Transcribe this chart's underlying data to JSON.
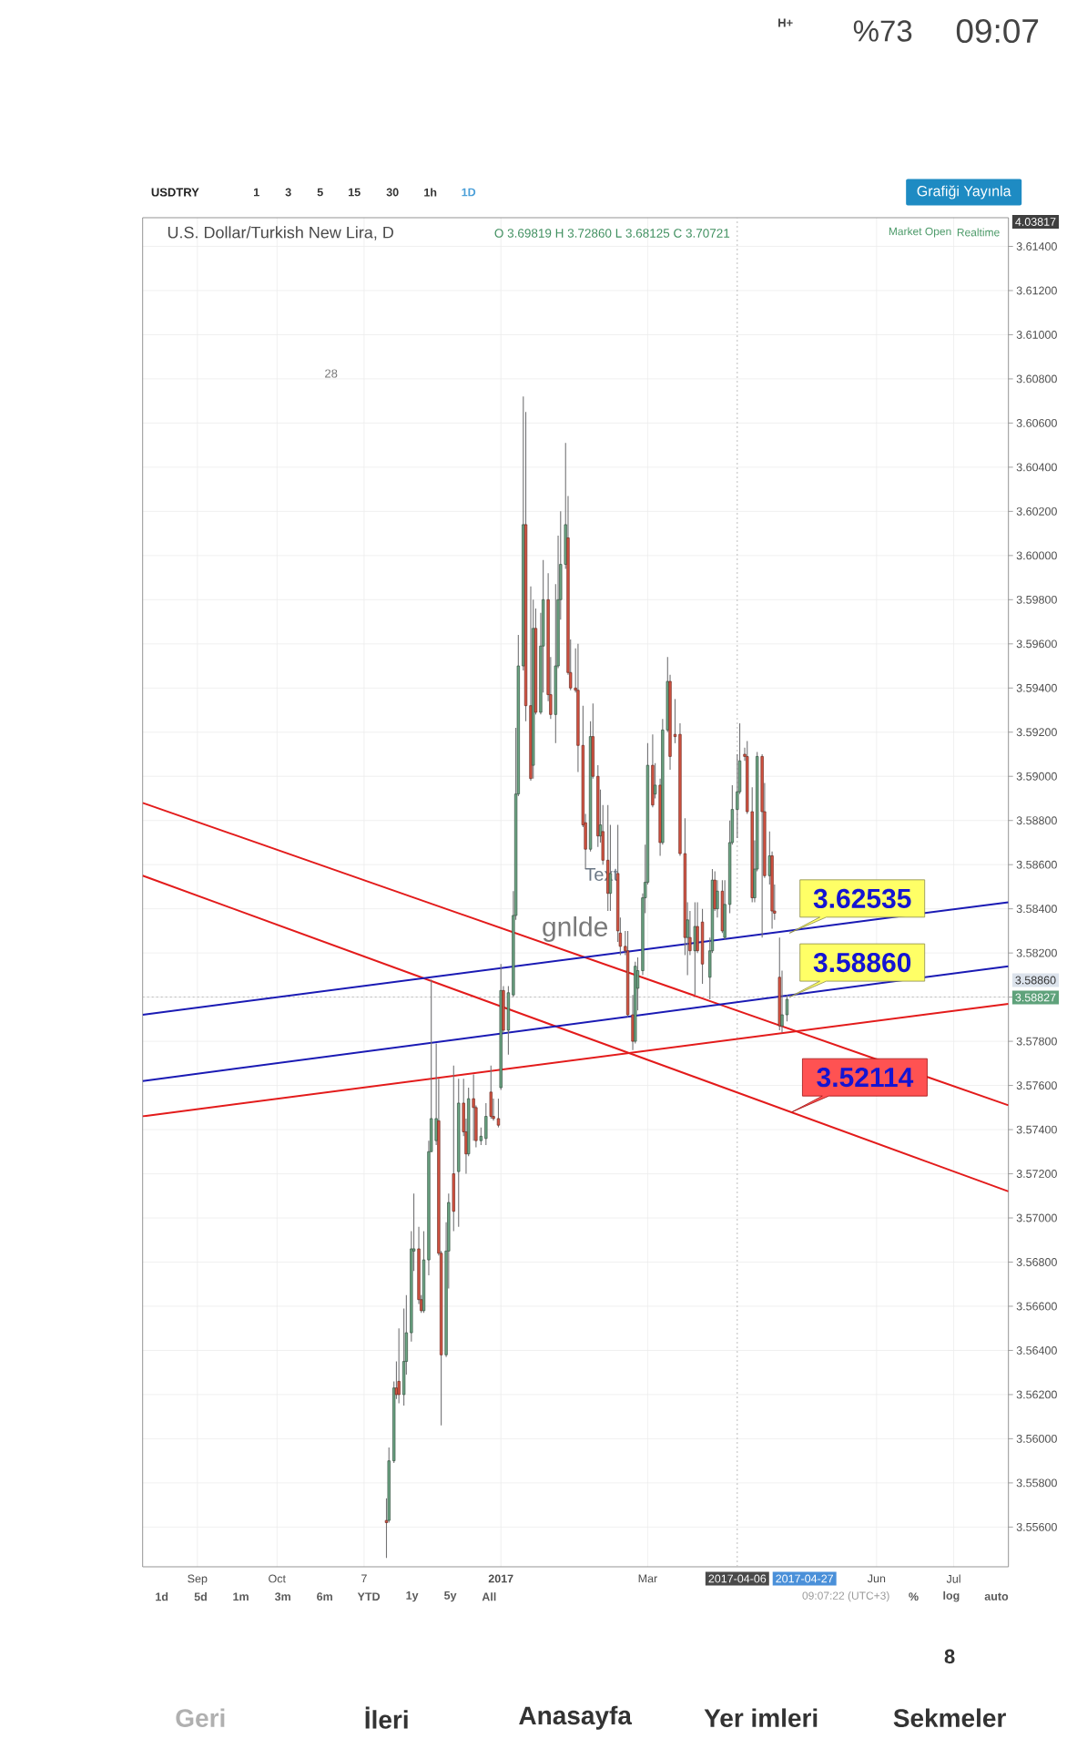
{
  "chart_data": {
    "type": "candlestick",
    "title": "U.S. Dollar/Turkish New Lira, D",
    "subtitle": "O 3.69819 H 3.72860 L 3.68125 C 3.70721",
    "x": [
      "2016-11-16",
      "2016-11-17",
      "2016-11-19",
      "2016-11-20",
      "2016-11-21",
      "2016-11-23",
      "2016-11-24",
      "2016-11-26",
      "2016-11-27",
      "2016-11-29",
      "2016-11-30",
      "2016-12-01",
      "2016-12-03",
      "2016-12-04",
      "2016-12-06",
      "2016-12-07",
      "2016-12-08",
      "2016-12-10",
      "2016-12-11",
      "2016-12-13",
      "2016-12-15",
      "2016-12-17",
      "2016-12-18",
      "2016-12-19",
      "2016-12-21",
      "2016-12-22",
      "2016-12-24",
      "2016-12-26",
      "2016-12-28",
      "2016-12-29",
      "2016-12-31",
      "2017-01-01",
      "2017-01-02",
      "2017-01-04",
      "2017-01-06",
      "2017-01-07",
      "2017-01-08",
      "2017-01-10",
      "2017-01-11",
      "2017-01-13",
      "2017-01-14",
      "2017-01-15",
      "2017-01-17",
      "2017-01-18",
      "2017-01-20",
      "2017-01-21",
      "2017-01-23",
      "2017-01-24",
      "2017-01-25",
      "2017-01-27",
      "2017-01-28",
      "2017-01-29",
      "2017-01-31",
      "2017-02-01",
      "2017-02-03",
      "2017-02-04",
      "2017-02-06",
      "2017-02-07",
      "2017-02-09",
      "2017-02-10",
      "2017-02-11",
      "2017-02-13",
      "2017-02-14",
      "2017-02-17",
      "2017-02-18",
      "2017-02-20",
      "2017-02-21",
      "2017-02-23",
      "2017-02-24",
      "2017-02-25",
      "2017-02-27",
      "2017-02-28",
      "2017-03-01",
      "2017-03-03",
      "2017-03-04",
      "2017-03-06",
      "2017-03-07",
      "2017-03-09",
      "2017-03-10",
      "2017-03-12",
      "2017-03-14",
      "2017-03-16",
      "2017-03-17",
      "2017-03-18",
      "2017-03-20",
      "2017-03-21",
      "2017-03-23",
      "2017-03-26",
      "2017-03-27",
      "2017-03-28",
      "2017-03-29",
      "2017-03-31",
      "2017-04-01",
      "2017-04-03",
      "2017-04-04",
      "2017-04-06",
      "2017-04-07",
      "2017-04-09",
      "2017-04-10",
      "2017-04-12",
      "2017-04-13",
      "2017-04-14",
      "2017-04-16",
      "2017-04-17",
      "2017-04-19",
      "2017-04-20",
      "2017-04-21",
      "2017-04-23",
      "2017-04-24",
      "2017-04-26"
    ],
    "ohlc": [
      [
        3.5563,
        3.5573,
        3.5546,
        3.5562
      ],
      [
        3.5563,
        3.5596,
        3.5562,
        3.559
      ],
      [
        3.559,
        3.5626,
        3.5589,
        3.5623
      ],
      [
        3.5623,
        3.5635,
        3.5618,
        3.562
      ],
      [
        3.5626,
        3.565,
        3.5616,
        3.562
      ],
      [
        3.562,
        3.5659,
        3.5615,
        3.5635
      ],
      [
        3.5635,
        3.5665,
        3.5629,
        3.5648
      ],
      [
        3.5648,
        3.5694,
        3.5644,
        3.5686
      ],
      [
        3.5685,
        3.5711,
        3.5676,
        3.5686
      ],
      [
        3.5686,
        3.5696,
        3.5661,
        3.5663
      ],
      [
        3.5663,
        3.5665,
        3.5657,
        3.5658
      ],
      [
        3.5658,
        3.5694,
        3.5657,
        3.5681
      ],
      [
        3.5681,
        3.5735,
        3.5674,
        3.573
      ],
      [
        3.573,
        3.5808,
        3.573,
        3.5745
      ],
      [
        3.5735,
        3.5779,
        3.5733,
        3.5745
      ],
      [
        3.5744,
        3.5763,
        3.5683,
        3.5684
      ],
      [
        3.5684,
        3.5685,
        3.5606,
        3.5638
      ],
      [
        3.5638,
        3.5698,
        3.5637,
        3.5685
      ],
      [
        3.5685,
        3.5711,
        3.5668,
        3.5707
      ],
      [
        3.572,
        3.5769,
        3.5694,
        3.5703
      ],
      [
        3.5721,
        3.5763,
        3.5696,
        3.5752
      ],
      [
        3.5752,
        3.5763,
        3.5737,
        3.5739
      ],
      [
        3.5739,
        3.5745,
        3.572,
        3.5729
      ],
      [
        3.5729,
        3.5759,
        3.5728,
        3.5754
      ],
      [
        3.5754,
        3.5765,
        3.5735,
        3.575
      ],
      [
        3.575,
        3.5751,
        3.5732,
        3.5735
      ],
      [
        3.5735,
        3.5741,
        3.5733,
        3.5737
      ],
      [
        3.5736,
        3.5752,
        3.5733,
        3.5746
      ],
      [
        3.5757,
        3.5769,
        3.5745,
        3.5746
      ],
      [
        3.5746,
        3.5754,
        3.5744,
        3.5745
      ],
      [
        3.5745,
        3.5754,
        3.5741,
        3.5742
      ],
      [
        3.5759,
        3.5815,
        3.5758,
        3.5803
      ],
      [
        3.5803,
        3.5805,
        3.5784,
        3.5785
      ],
      [
        3.5785,
        3.5805,
        3.5774,
        3.5802
      ],
      [
        3.5801,
        3.5848,
        3.58,
        3.5837
      ],
      [
        3.5837,
        3.5922,
        3.5835,
        3.5892
      ],
      [
        3.5892,
        3.5964,
        3.5891,
        3.595
      ],
      [
        3.595,
        3.6072,
        3.5948,
        3.6014
      ],
      [
        3.6014,
        3.6065,
        3.5925,
        3.5932
      ],
      [
        3.5932,
        3.5986,
        3.5898,
        3.5899
      ],
      [
        3.5905,
        3.598,
        3.5899,
        3.5967
      ],
      [
        3.5967,
        3.5976,
        3.5928,
        3.5929
      ],
      [
        3.5929,
        3.5974,
        3.5928,
        3.5959
      ],
      [
        3.5959,
        3.5998,
        3.5938,
        3.598
      ],
      [
        3.598,
        3.5992,
        3.5934,
        3.5937
      ],
      [
        3.5937,
        3.5954,
        3.5926,
        3.5928
      ],
      [
        3.5928,
        3.5987,
        3.5915,
        3.595
      ],
      [
        3.595,
        3.6009,
        3.5949,
        3.598
      ],
      [
        3.598,
        3.602,
        3.5971,
        3.5996
      ],
      [
        3.5996,
        3.6051,
        3.5994,
        3.6014
      ],
      [
        3.6008,
        3.6027,
        3.5946,
        3.5947
      ],
      [
        3.5947,
        3.5962,
        3.5939,
        3.594
      ],
      [
        3.594,
        3.5958,
        3.5938,
        3.5939
      ],
      [
        3.5939,
        3.596,
        3.5902,
        3.5914
      ],
      [
        3.5914,
        3.5932,
        3.5877,
        3.5878
      ],
      [
        3.5879,
        3.5883,
        3.5858,
        3.5867
      ],
      [
        3.5867,
        3.5925,
        3.5866,
        3.5918
      ],
      [
        3.5918,
        3.5933,
        3.5899,
        3.59
      ],
      [
        3.59,
        3.5905,
        3.5868,
        3.5873
      ],
      [
        3.5873,
        3.5894,
        3.587,
        3.5878
      ],
      [
        3.5875,
        3.5887,
        3.586,
        3.5862
      ],
      [
        3.5862,
        3.5887,
        3.5839,
        3.5847
      ],
      [
        3.5847,
        3.5878,
        3.5839,
        3.5856
      ],
      [
        3.5856,
        3.5878,
        3.5825,
        3.583
      ],
      [
        3.5829,
        3.5836,
        3.5819,
        3.5823
      ],
      [
        3.5823,
        3.583,
        3.5819,
        3.5821
      ],
      [
        3.5821,
        3.583,
        3.5791,
        3.5792
      ],
      [
        3.5792,
        3.5801,
        3.5776,
        3.578
      ],
      [
        3.578,
        3.5816,
        3.5779,
        3.5814
      ],
      [
        3.5804,
        3.5818,
        3.5794,
        3.5812
      ],
      [
        3.5812,
        3.5847,
        3.581,
        3.5845
      ],
      [
        3.5845,
        3.5869,
        3.5838,
        3.5852
      ],
      [
        3.5852,
        3.5915,
        3.5851,
        3.5905
      ],
      [
        3.5905,
        3.5919,
        3.5886,
        3.5887
      ],
      [
        3.5892,
        3.5906,
        3.589,
        3.5896
      ],
      [
        3.5896,
        3.5899,
        3.5864,
        3.587
      ],
      [
        3.587,
        3.5926,
        3.5869,
        3.5921
      ],
      [
        3.5921,
        3.5954,
        3.592,
        3.5943
      ],
      [
        3.5943,
        3.5946,
        3.5903,
        3.5909
      ],
      [
        3.5919,
        3.5935,
        3.5915,
        3.5918
      ],
      [
        3.5919,
        3.5924,
        3.5864,
        3.5865
      ],
      [
        3.5865,
        3.5881,
        3.5819,
        3.5827
      ],
      [
        3.5827,
        3.5843,
        3.581,
        3.5835
      ],
      [
        3.5827,
        3.5839,
        3.5819,
        3.5821
      ],
      [
        3.5821,
        3.5843,
        3.5801,
        3.5832
      ],
      [
        3.5832,
        3.5843,
        3.582,
        3.5821
      ],
      [
        3.5834,
        3.584,
        3.5806,
        3.5815
      ],
      [
        3.5809,
        3.5827,
        3.5799,
        3.5821
      ],
      [
        3.5821,
        3.5858,
        3.582,
        3.5853
      ],
      [
        3.5853,
        3.5857,
        3.5839,
        3.584
      ],
      [
        3.584,
        3.5853,
        3.5836,
        3.5848
      ],
      [
        3.5848,
        3.5853,
        3.5829,
        3.583
      ],
      [
        3.5827,
        3.5853,
        3.5826,
        3.5842
      ],
      [
        3.5842,
        3.588,
        3.5838,
        3.587
      ],
      [
        3.587,
        3.5896,
        3.5869,
        3.5885
      ],
      [
        3.5885,
        3.591,
        3.5872,
        3.5893
      ],
      [
        3.5893,
        3.5924,
        3.5892,
        3.5907
      ],
      [
        3.591,
        3.5913,
        3.5907,
        3.5909
      ],
      [
        3.5909,
        3.5916,
        3.5883,
        3.5884
      ],
      [
        3.5884,
        3.5895,
        3.5843,
        3.5845
      ],
      [
        3.5845,
        3.5871,
        3.5843,
        3.5858
      ],
      [
        3.5858,
        3.5911,
        3.5857,
        3.5909
      ],
      [
        3.5909,
        3.591,
        3.5827,
        3.5884
      ],
      [
        3.5884,
        3.5897,
        3.5854,
        3.5855
      ],
      [
        3.5855,
        3.5875,
        3.5851,
        3.5864
      ],
      [
        3.5864,
        3.5866,
        3.5831,
        3.5839
      ],
      [
        3.5839,
        3.5851,
        3.5835,
        3.5838
      ],
      [
        3.5809,
        3.5827,
        3.5785,
        3.5787
      ],
      [
        3.5787,
        3.5812,
        3.5784,
        3.5792
      ],
      [
        3.5792,
        3.5801,
        3.5789,
        3.5799
      ]
    ],
    "colors": [
      "#d75442",
      "#6ba583",
      "#6ba583",
      "#d75442",
      "#d75442",
      "#6ba583",
      "#6ba583",
      "#6ba583",
      "#6ba583",
      "#d75442",
      "#d75442",
      "#6ba583",
      "#6ba583",
      "#6ba583",
      "#6ba583",
      "#d75442",
      "#d75442",
      "#6ba583",
      "#6ba583",
      "#d75442",
      "#6ba583",
      "#d75442",
      "#d75442",
      "#6ba583",
      "#d75442",
      "#d75442",
      "#6ba583",
      "#6ba583",
      "#d75442",
      "#d75442",
      "#d75442",
      "#6ba583",
      "#d75442",
      "#6ba583",
      "#6ba583",
      "#6ba583",
      "#6ba583",
      "#6ba583",
      "#d75442",
      "#d75442",
      "#6ba583",
      "#d75442",
      "#6ba583",
      "#6ba583",
      "#d75442",
      "#d75442",
      "#6ba583",
      "#6ba583",
      "#6ba583",
      "#6ba583",
      "#d75442",
      "#d75442",
      "#d75442",
      "#d75442",
      "#d75442",
      "#d75442",
      "#6ba583",
      "#d75442",
      "#d75442",
      "#6ba583",
      "#d75442",
      "#d75442",
      "#6ba583",
      "#d75442",
      "#d75442",
      "#d75442",
      "#d75442",
      "#d75442",
      "#6ba583",
      "#6ba583",
      "#6ba583",
      "#6ba583",
      "#6ba583",
      "#d75442",
      "#6ba583",
      "#d75442",
      "#6ba583",
      "#6ba583",
      "#d75442",
      "#d75442",
      "#d75442",
      "#d75442",
      "#6ba583",
      "#d75442",
      "#6ba583",
      "#d75442",
      "#d75442",
      "#6ba583",
      "#6ba583",
      "#d75442",
      "#6ba583",
      "#d75442",
      "#6ba583",
      "#6ba583",
      "#6ba583",
      "#6ba583",
      "#6ba583",
      "#d75442",
      "#d75442",
      "#d75442",
      "#6ba583",
      "#6ba583",
      "#d75442",
      "#d75442",
      "#6ba583",
      "#d75442",
      "#d75442",
      "#d75442",
      "#6ba583",
      "#6ba583"
    ],
    "series": [
      {
        "type": "line",
        "color": "#e31b1b",
        "x": [
          "2016-08-10",
          "2017-07-24"
        ],
        "values": [
          3.5888,
          3.5751
        ]
      },
      {
        "type": "line",
        "color": "#e31b1b",
        "x": [
          "2016-08-10",
          "2017-07-24"
        ],
        "values": [
          3.5855,
          3.5712
        ]
      },
      {
        "type": "line",
        "color": "#e31b1b",
        "x": [
          "2016-08-10",
          "2017-07-24"
        ],
        "values": [
          3.5746,
          3.5797
        ]
      },
      {
        "type": "line",
        "color": "#1a1ab4",
        "x": [
          "2016-08-10",
          "2017-07-24"
        ],
        "values": [
          3.5792,
          3.5843
        ]
      },
      {
        "type": "line",
        "color": "#1a1ab4",
        "x": [
          "2016-08-10",
          "2017-07-24"
        ],
        "values": [
          3.5762,
          3.5814
        ]
      }
    ],
    "xlim": [
      "2016-08-10",
      "2017-07-24"
    ],
    "xticks": [
      {
        "value": "2016-09-01",
        "label": "Sep"
      },
      {
        "value": "2016-10-03",
        "label": "Oct"
      },
      {
        "value": "2016-11-07",
        "label": "7"
      },
      {
        "value": "2017-01-01",
        "label": "2017"
      },
      {
        "value": "2017-03-01",
        "label": "Mar"
      },
      {
        "value": "2017-06-01",
        "label": "Jun"
      },
      {
        "value": "2017-07-02",
        "label": "Jul"
      }
    ],
    "ylim": [
      3.5542,
      3.6153
    ],
    "yticks": [
      {
        "value": 3.556,
        "label": "3.55600"
      },
      {
        "value": 3.558,
        "label": "3.55800"
      },
      {
        "value": 3.56,
        "label": "3.56000"
      },
      {
        "value": 3.562,
        "label": "3.56200"
      },
      {
        "value": 3.564,
        "label": "3.56400"
      },
      {
        "value": 3.566,
        "label": "3.56600"
      },
      {
        "value": 3.568,
        "label": "3.56800"
      },
      {
        "value": 3.57,
        "label": "3.57000"
      },
      {
        "value": 3.572,
        "label": "3.57200"
      },
      {
        "value": 3.574,
        "label": "3.57400"
      },
      {
        "value": 3.576,
        "label": "3.57600"
      },
      {
        "value": 3.578,
        "label": "3.57800"
      },
      {
        "value": 3.58,
        "label": null
      },
      {
        "value": 3.582,
        "label": "3.58200"
      },
      {
        "value": 3.584,
        "label": "3.58400"
      },
      {
        "value": 3.586,
        "label": "3.58600"
      },
      {
        "value": 3.588,
        "label": "3.58800"
      },
      {
        "value": 3.59,
        "label": "3.59000"
      },
      {
        "value": 3.592,
        "label": "3.59200"
      },
      {
        "value": 3.594,
        "label": "3.59400"
      },
      {
        "value": 3.596,
        "label": "3.59600"
      },
      {
        "value": 3.598,
        "label": "3.59800"
      },
      {
        "value": 3.6,
        "label": "3.60000"
      },
      {
        "value": 3.602,
        "label": "3.60200"
      },
      {
        "value": 3.604,
        "label": "3.60400"
      },
      {
        "value": 3.606,
        "label": "3.60600"
      },
      {
        "value": 3.608,
        "label": "3.60800"
      },
      {
        "value": 3.61,
        "label": "3.61000"
      },
      {
        "value": 3.612,
        "label": "3.61200"
      },
      {
        "value": 3.614,
        "label": "3.61400"
      }
    ],
    "grid": true,
    "ref_lines": [
      {
        "axis": "y",
        "value": 3.58,
        "line_style": "dotted",
        "color": "#bdbdbd"
      },
      {
        "axis": "x",
        "value": "2017-04-06",
        "label": "2017-04-06",
        "line_style": "dotted",
        "color": "#bdbdbd"
      }
    ],
    "annotations": [
      {
        "text": "3.62535",
        "x": "2017-04-27",
        "y": 3.5829
      },
      {
        "text": "3.58860",
        "x": "2017-04-27",
        "y": 3.58
      },
      {
        "text": "3.52114",
        "x": "2017-04-28",
        "y": 3.5748
      },
      "gnlde",
      "Text",
      "USDTRY",
      "1",
      "3",
      "5",
      "15",
      "30",
      "1h",
      "1D",
      "Grafiği Yayınla",
      "Market Open",
      "Realtime",
      "4.03817",
      "3.58860",
      "3.58827",
      "28",
      "2017-04-27",
      "1d",
      "5d",
      "1m",
      "3m",
      "6m",
      "YTD",
      "1y",
      "5y",
      "All",
      "09:07:22 (UTC+3)",
      "%",
      "log",
      "auto",
      "Geri",
      "İleri",
      "Anasayfa",
      "Yer imleri",
      "Sekmeler",
      "8",
      "%73",
      "09:07",
      "H+"
    ]
  }
}
